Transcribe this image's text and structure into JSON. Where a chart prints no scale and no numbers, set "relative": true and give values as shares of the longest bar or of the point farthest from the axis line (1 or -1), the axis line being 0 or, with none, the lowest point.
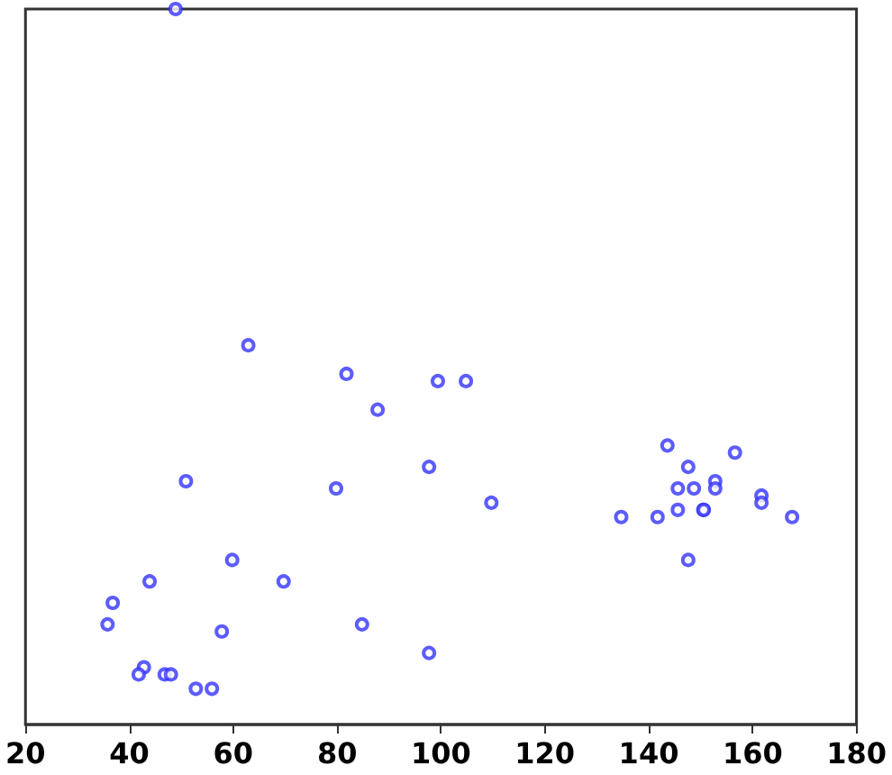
{
  "chart_data": {
    "type": "scatter",
    "relative": true,
    "marker": "circle",
    "grid": false,
    "xlim": [
      20,
      180
    ],
    "xticks": [
      20,
      40,
      60,
      80,
      100,
      120,
      140,
      160,
      180
    ],
    "series": [
      {
        "color": "#3333ff",
        "x": [
          48.9,
          62.9,
          81.8,
          99.4,
          104.8,
          87.8,
          50.9,
          97.7,
          79.8,
          109.7,
          59.8,
          43.9,
          69.7,
          36.8,
          35.8,
          84.8,
          57.8,
          97.7,
          42.8,
          41.8,
          46.8,
          48.0,
          52.8,
          55.9,
          143.6,
          156.6,
          147.6,
          148.7,
          152.8,
          152.8,
          145.6,
          161.7,
          161.7,
          145.6,
          150.5,
          150.6,
          167.6,
          134.7,
          141.7,
          147.6
        ],
        "values": [
          1.0,
          0.53,
          0.49,
          0.48,
          0.48,
          0.44,
          0.34,
          0.36,
          0.33,
          0.31,
          0.23,
          0.2,
          0.2,
          0.17,
          0.14,
          0.14,
          0.13,
          0.1,
          0.08,
          0.07,
          0.07,
          0.07,
          0.05,
          0.05,
          0.39,
          0.38,
          0.36,
          0.33,
          0.34,
          0.33,
          0.33,
          0.32,
          0.31,
          0.3,
          0.3,
          0.3,
          0.29,
          0.29,
          0.29,
          0.23
        ]
      }
    ]
  }
}
